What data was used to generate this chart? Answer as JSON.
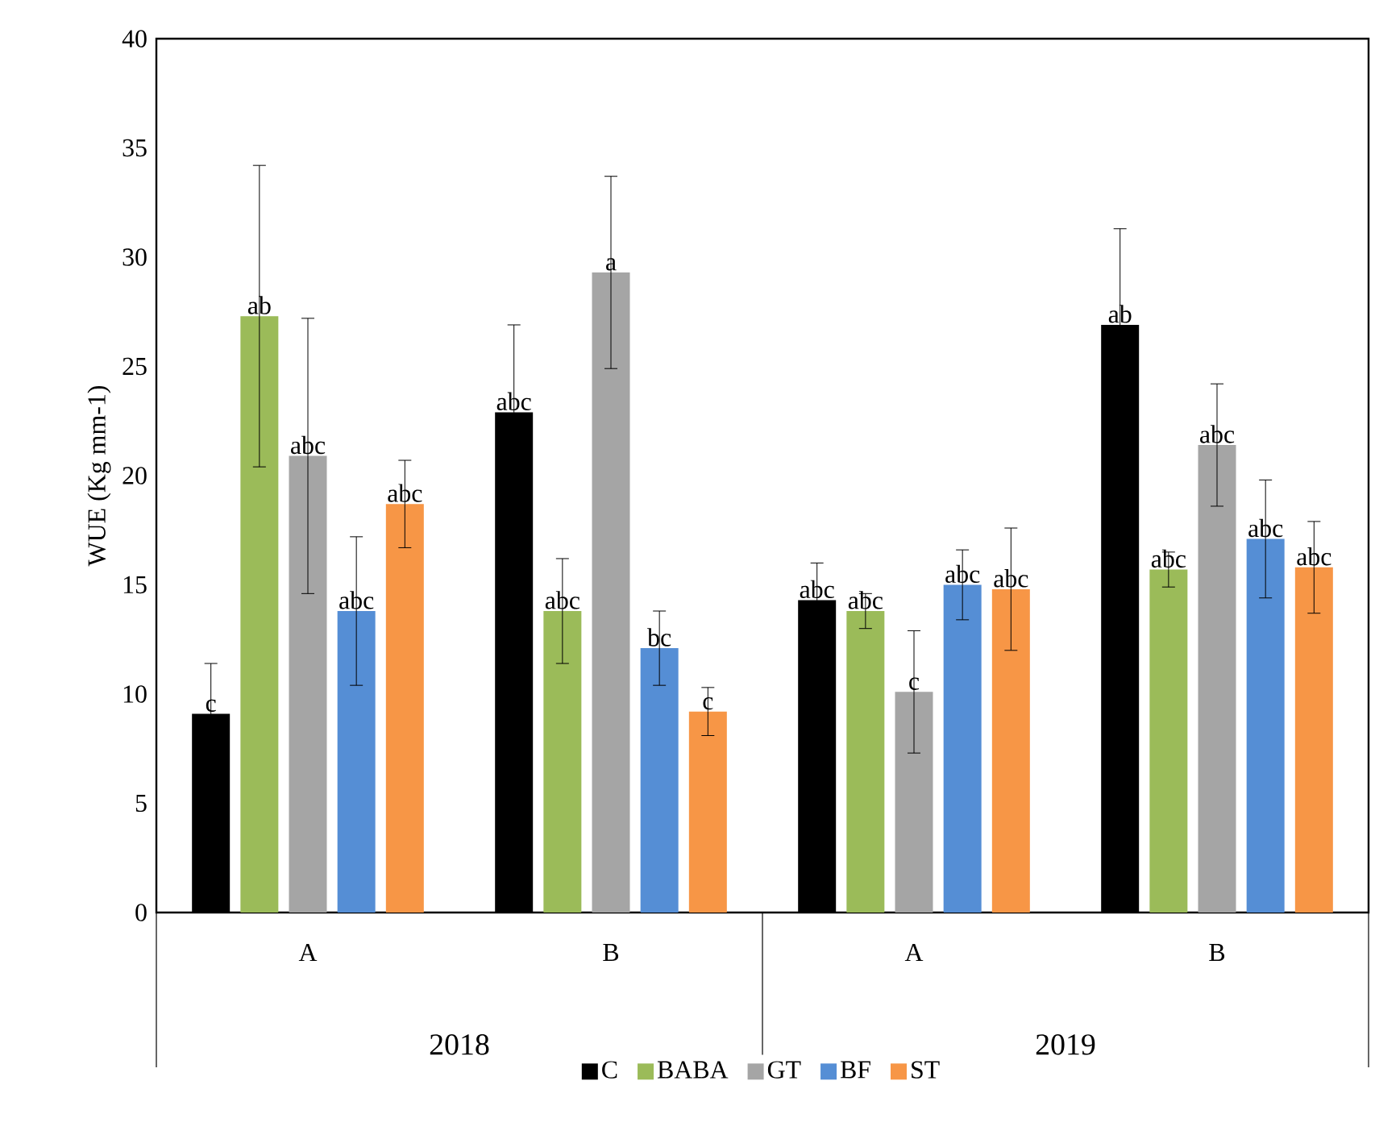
{
  "chart_data": {
    "type": "bar",
    "ylabel": "WUE (Kg mm-1)",
    "categories": [
      "A",
      "B",
      "A",
      "B"
    ],
    "annotations": [
      "2018",
      "2019"
    ],
    "ylim": [
      0,
      40
    ],
    "yticks": [
      0,
      5,
      10,
      15,
      20,
      25,
      30,
      35,
      40
    ],
    "legend": "bottom",
    "series": [
      {
        "name": "C",
        "color": "#000000",
        "values": [
          9.1,
          22.9,
          14.3,
          26.9
        ],
        "errors": [
          2.3,
          4.0,
          1.7,
          4.4
        ],
        "value_labels": [
          "c",
          "abc",
          "abc",
          "ab"
        ]
      },
      {
        "name": "BABA",
        "color": "#9bbb59",
        "values": [
          27.3,
          13.8,
          13.8,
          15.7
        ],
        "errors": [
          6.9,
          2.4,
          0.8,
          0.8
        ],
        "value_labels": [
          "ab",
          "abc",
          "abc",
          "abc"
        ]
      },
      {
        "name": "GT",
        "color": "#a5a5a5",
        "values": [
          20.9,
          29.3,
          10.1,
          21.4
        ],
        "errors": [
          6.3,
          4.4,
          2.8,
          2.8
        ],
        "value_labels": [
          "abc",
          "a",
          "c",
          "abc"
        ]
      },
      {
        "name": "BF",
        "color": "#558ed5",
        "values": [
          13.8,
          12.1,
          15.0,
          17.1
        ],
        "errors": [
          3.4,
          1.7,
          1.6,
          2.7
        ],
        "value_labels": [
          "abc",
          "bc",
          "abc",
          "abc"
        ]
      },
      {
        "name": "ST",
        "color": "#f79646",
        "values": [
          18.7,
          9.2,
          14.8,
          15.8
        ],
        "errors": [
          2.0,
          1.1,
          2.8,
          2.1
        ],
        "value_labels": [
          "abc",
          "c",
          "abc",
          "abc"
        ]
      }
    ]
  }
}
